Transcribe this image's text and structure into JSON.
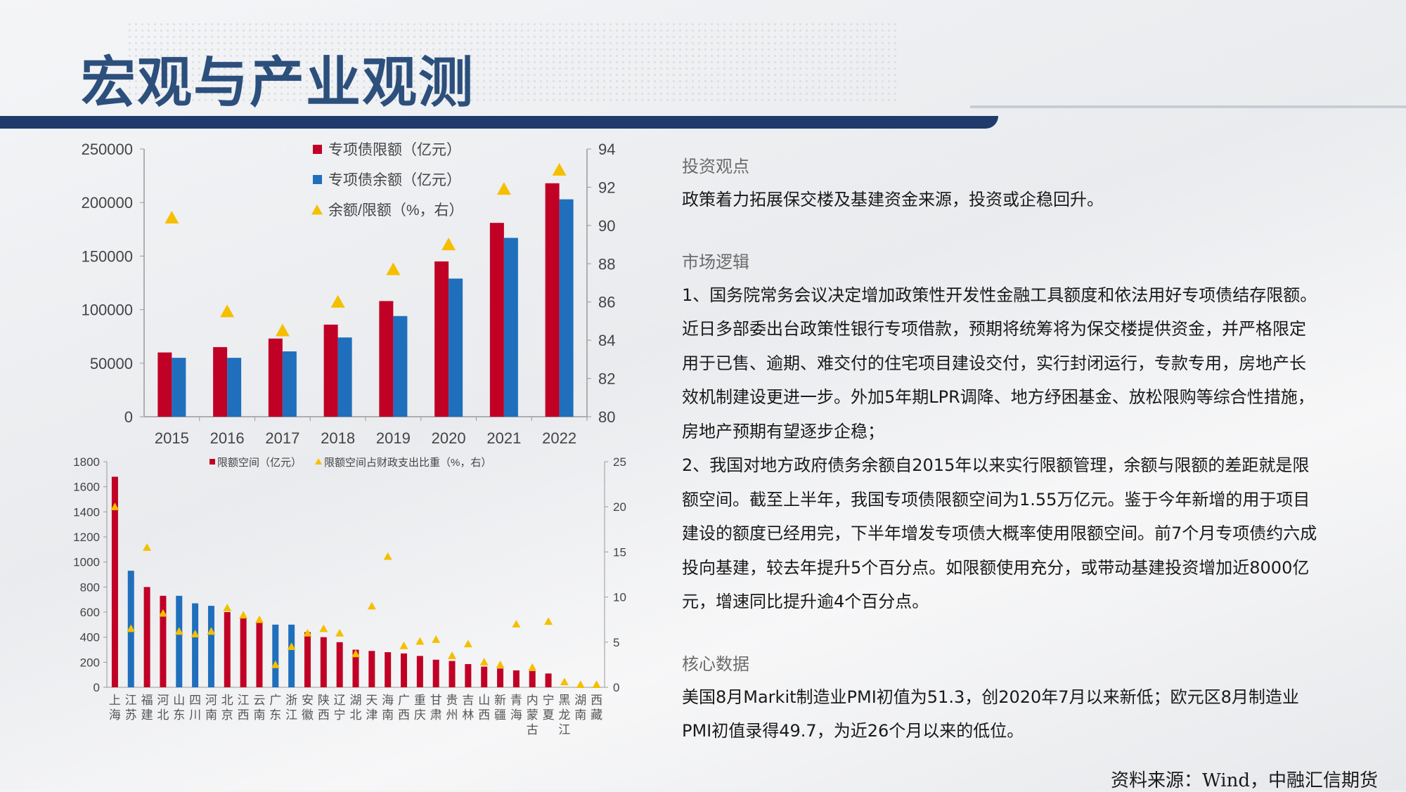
{
  "page": {
    "title": "宏观与产业观测",
    "source": "资料来源：Wind，中融汇信期货"
  },
  "colors": {
    "red": "#c00025",
    "blue": "#1f6fbd",
    "yellow": "#f5bf00",
    "navy": "#1f3a6b"
  },
  "chart_data": [
    {
      "type": "bar",
      "categories": [
        "2015",
        "2016",
        "2017",
        "2018",
        "2019",
        "2020",
        "2021",
        "2022"
      ],
      "series": [
        {
          "name": "专项债限额（亿元）",
          "color": "#c00025",
          "values": [
            60000,
            65000,
            73000,
            86000,
            108000,
            145000,
            181000,
            218000
          ]
        },
        {
          "name": "专项债余额（亿元）",
          "color": "#1f6fbd",
          "values": [
            55000,
            55000,
            61000,
            74000,
            94000,
            129000,
            167000,
            203000
          ]
        },
        {
          "name": "余额/限额（%，右）",
          "color": "#f5bf00",
          "marker": "triangle",
          "axis": "right",
          "values": [
            90.4,
            85.5,
            84.5,
            86.0,
            87.7,
            89.0,
            91.9,
            92.9
          ]
        }
      ],
      "ylim": [
        0,
        250000
      ],
      "y_ticks": [
        "250000",
        "200000",
        "150000",
        "100000",
        "50000",
        "0"
      ],
      "y2lim": [
        80,
        94
      ],
      "y2_ticks": [
        "94",
        "92",
        "90",
        "88",
        "86",
        "84",
        "82",
        "80"
      ],
      "legend": "top-left"
    },
    {
      "type": "bar",
      "categories": [
        "上海",
        "江苏",
        "福建",
        "河北",
        "山东",
        "四川",
        "河南",
        "北京",
        "江西",
        "云南",
        "广东",
        "浙江",
        "安徽",
        "陕西",
        "辽宁",
        "湖北",
        "天津",
        "海南",
        "广西",
        "重庆",
        "甘肃",
        "贵州",
        "吉林",
        "山西",
        "新疆",
        "青海",
        "内蒙古",
        "宁夏",
        "黑龙江",
        "湖南",
        "西藏"
      ],
      "series": [
        {
          "name": "限额空间（亿元）",
          "values": [
            1680,
            930,
            800,
            730,
            730,
            670,
            650,
            600,
            550,
            520,
            500,
            500,
            440,
            400,
            360,
            300,
            290,
            280,
            270,
            250,
            220,
            210,
            185,
            165,
            150,
            135,
            130,
            110,
            0,
            0,
            0
          ]
        },
        {
          "name": "限额空间占财政支出比重（%，右）",
          "axis": "right",
          "values": [
            20,
            6.5,
            15.5,
            8.2,
            6.2,
            5.9,
            6.2,
            8.8,
            8,
            7.5,
            2.5,
            4.5,
            6,
            6.5,
            6,
            3.7,
            9,
            14.5,
            4.6,
            5.1,
            5.3,
            3.5,
            4.8,
            2.8,
            2.5,
            7,
            2.2,
            7.3,
            0.6,
            0.3,
            0.3
          ]
        }
      ],
      "bar_colors": [
        "red",
        "blue",
        "red",
        "red",
        "blue",
        "blue",
        "blue",
        "red",
        "red",
        "red",
        "blue",
        "blue",
        "red",
        "red",
        "red",
        "red",
        "red",
        "red",
        "red",
        "red",
        "red",
        "red",
        "red",
        "red",
        "red",
        "red",
        "red",
        "red",
        "red",
        "red",
        "red"
      ],
      "ylim": [
        0,
        1800
      ],
      "y_ticks": [
        "1800",
        "1600",
        "1400",
        "1200",
        "1000",
        "800",
        "600",
        "400",
        "200",
        "0"
      ],
      "y2lim": [
        0,
        25
      ],
      "y2_ticks": [
        "25",
        "20",
        "15",
        "10",
        "5",
        "0"
      ],
      "legend": "top"
    }
  ],
  "panel": {
    "sections": [
      {
        "title": "投资观点",
        "paragraphs": [
          "政策着力拓展保交楼及基建资金来源，投资或企稳回升。"
        ]
      },
      {
        "title": "市场逻辑",
        "paragraphs": [
          "1、国务院常务会议决定增加政策性开发性金融工具额度和依法用好专项债结存限额。近日多部委出台政策性银行专项借款，预期将统筹将为保交楼提供资金，并严格限定用于已售、逾期、难交付的住宅项目建设交付，实行封闭运行，专款专用，房地产长效机制建设更进一步。外加5年期LPR调降、地方纾困基金、放松限购等综合性措施，房地产预期有望逐步企稳；",
          "2、我国对地方政府债务余额自2015年以来实行限额管理，余额与限额的差距就是限额空间。截至上半年，我国专项债限额空间为1.55万亿元。鉴于今年新增的用于项目建设的额度已经用完，下半年增发专项债大概率使用限额空间。前7个月专项债约六成投向基建，较去年提升5个百分点。如限额使用充分，或带动基建投资增加近8000亿元，增速同比提升逾4个百分点。"
        ]
      },
      {
        "title": "核心数据",
        "paragraphs": [
          "美国8月Markit制造业PMI初值为51.3，创2020年7月以来新低；欧元区8月制造业PMI初值录得49.7，为近26个月以来的低位。"
        ]
      }
    ]
  }
}
